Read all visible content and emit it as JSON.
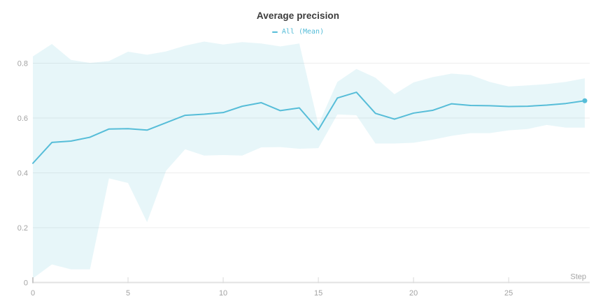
{
  "colors": {
    "accent": "#56bdd8",
    "band_fill_opacity": 0.14,
    "title": "#3b3b3b",
    "axis_label": "#a3a3a3",
    "grid": "#ededed",
    "axis_line": "#e2e2e2",
    "origin_tick": "#c9c9c9",
    "tick": "#d9d9d9"
  },
  "chart_data": {
    "type": "line",
    "title": "Average precision",
    "xlabel": "Step",
    "ylabel": "",
    "legend_position": "top-center",
    "grid": true,
    "xlim": [
      0,
      29
    ],
    "ylim": [
      0,
      0.9
    ],
    "xticks": [
      0,
      5,
      10,
      15,
      20,
      25
    ],
    "yticks": [
      0,
      0.2,
      0.4,
      0.6,
      0.8
    ],
    "ytick_labels": [
      "0",
      "0.2",
      "0.4",
      "0.6",
      "0.8"
    ],
    "x": [
      0,
      1,
      2,
      3,
      4,
      5,
      6,
      7,
      8,
      9,
      10,
      11,
      12,
      13,
      14,
      15,
      16,
      17,
      18,
      19,
      20,
      21,
      22,
      23,
      24,
      25,
      26,
      27,
      28,
      29
    ],
    "series": [
      {
        "name": "All (Mean)",
        "values": [
          0.435,
          0.511,
          0.516,
          0.53,
          0.56,
          0.561,
          0.556,
          0.583,
          0.61,
          0.614,
          0.62,
          0.643,
          0.656,
          0.627,
          0.637,
          0.557,
          0.673,
          0.694,
          0.617,
          0.596,
          0.618,
          0.628,
          0.652,
          0.646,
          0.645,
          0.642,
          0.643,
          0.647,
          0.653,
          0.663
        ],
        "band_upper": [
          0.825,
          0.87,
          0.812,
          0.801,
          0.808,
          0.842,
          0.831,
          0.843,
          0.864,
          0.879,
          0.868,
          0.877,
          0.872,
          0.861,
          0.872,
          0.576,
          0.732,
          0.779,
          0.747,
          0.687,
          0.73,
          0.749,
          0.762,
          0.757,
          0.732,
          0.715,
          0.719,
          0.724,
          0.732,
          0.745
        ],
        "band_lower": [
          0.015,
          0.066,
          0.048,
          0.048,
          0.38,
          0.363,
          0.22,
          0.408,
          0.486,
          0.463,
          0.465,
          0.463,
          0.493,
          0.494,
          0.488,
          0.49,
          0.613,
          0.61,
          0.507,
          0.507,
          0.51,
          0.521,
          0.535,
          0.545,
          0.545,
          0.555,
          0.56,
          0.575,
          0.565,
          0.565
        ],
        "end_marker": true
      }
    ]
  }
}
